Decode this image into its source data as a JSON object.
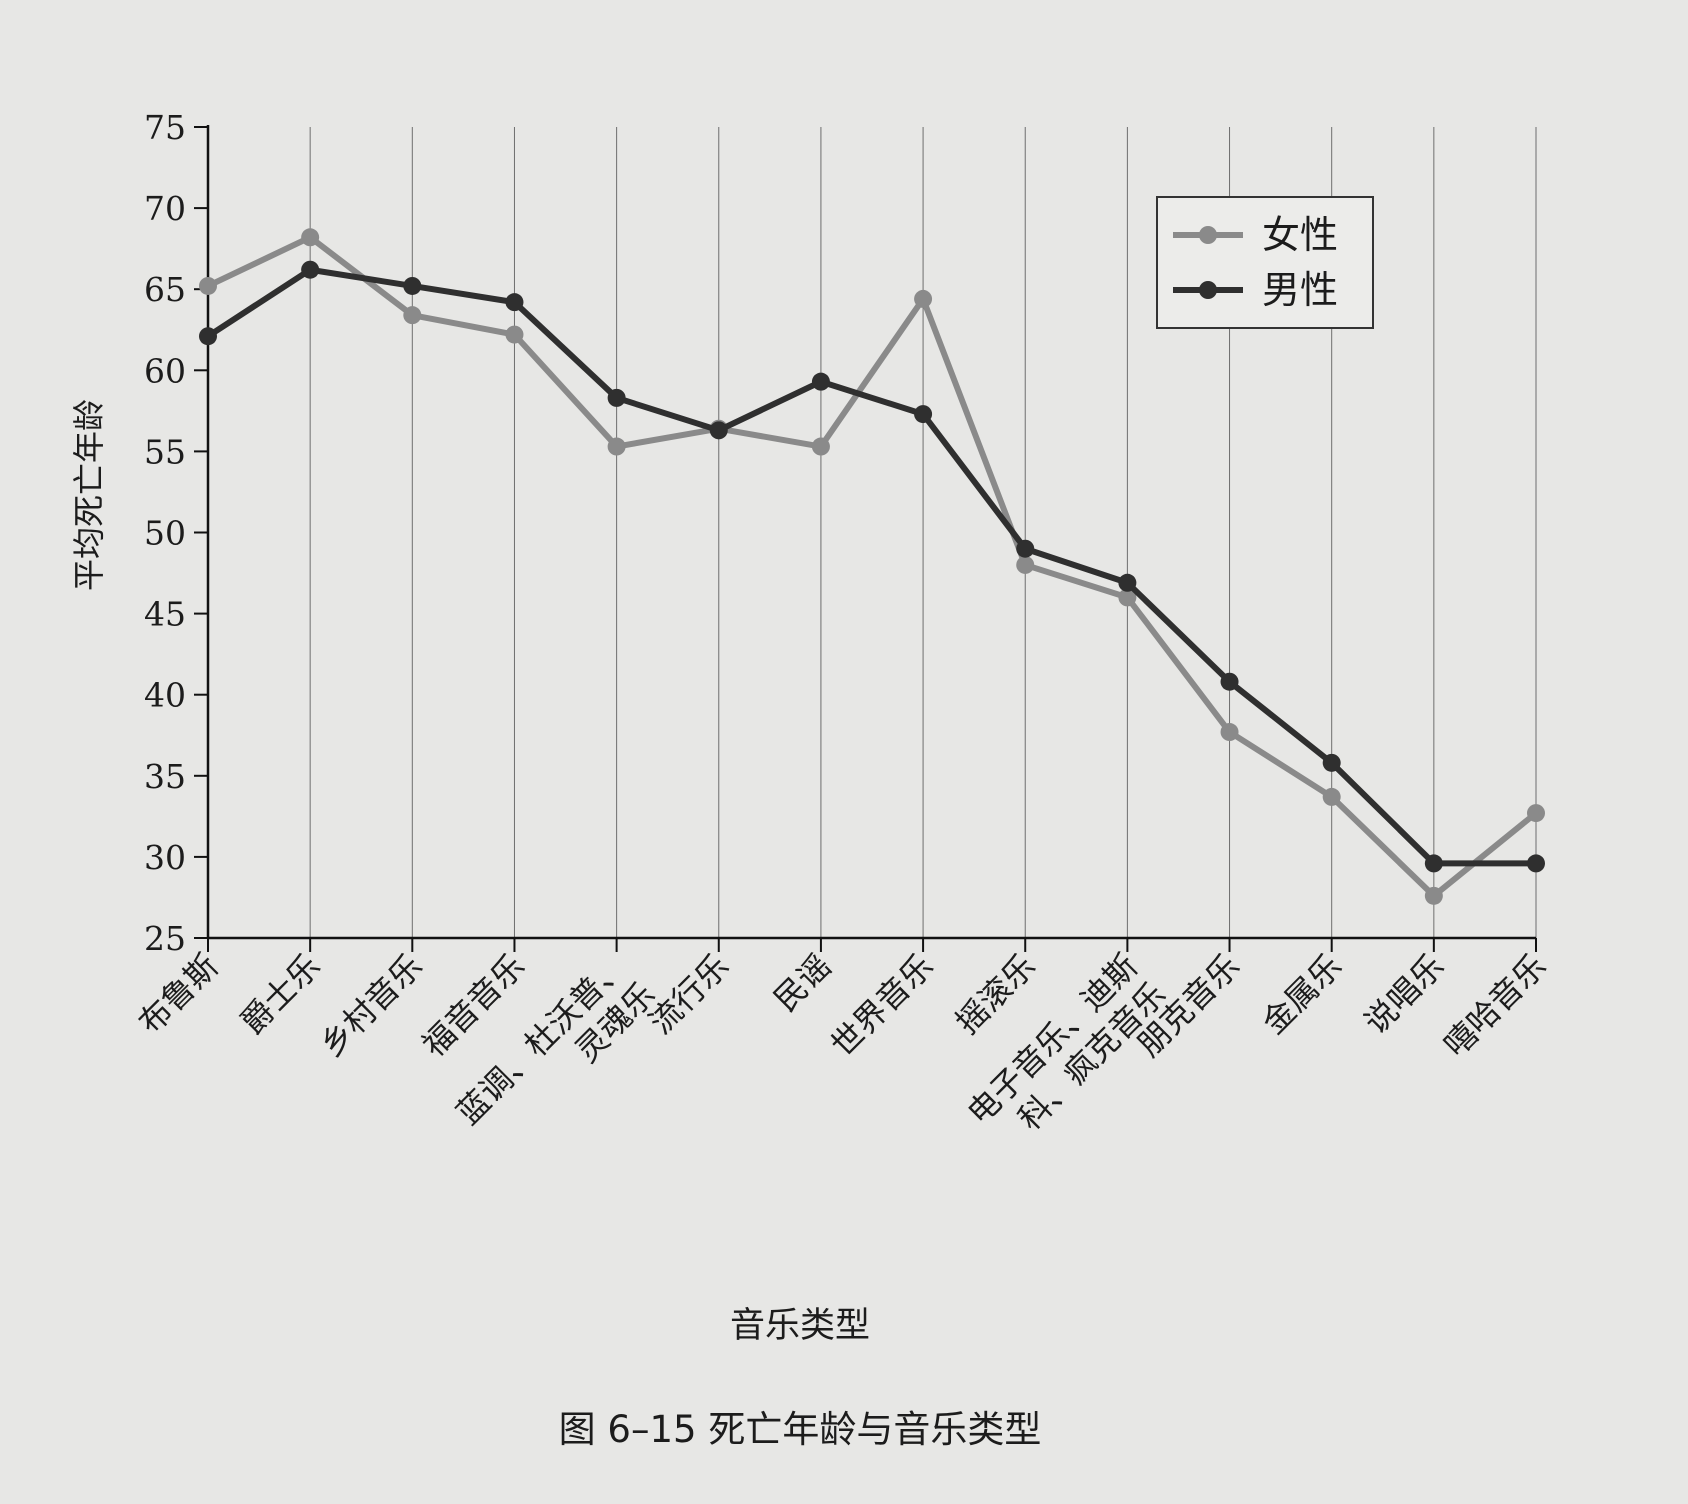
{
  "chart_data": {
    "type": "line",
    "title": "",
    "caption": "图 6–15   死亡年龄与音乐类型",
    "xlabel": "音乐类型",
    "ylabel": "平均死亡年龄",
    "ylim": [
      25,
      75
    ],
    "yticks": [
      25,
      30,
      35,
      40,
      45,
      50,
      55,
      60,
      65,
      70,
      75
    ],
    "grid": "vertical lines at categories",
    "legend_position": "top-right",
    "categories": [
      "布鲁斯",
      "爵士乐",
      "乡村音乐",
      "福音音乐",
      "蓝调、杜沃普、灵魂乐",
      "流行乐",
      "民谣",
      "世界音乐",
      "摇滚乐",
      "电子音乐、迪斯科、疯克音乐",
      "朋克音乐",
      "金属乐",
      "说唱乐",
      "嘻哈音乐"
    ],
    "category_lines": [
      [
        "布鲁斯"
      ],
      [
        "爵士乐"
      ],
      [
        "乡村音乐"
      ],
      [
        "福音音乐"
      ],
      [
        "蓝调、杜沃普、",
        "灵魂乐"
      ],
      [
        "流行乐"
      ],
      [
        "民谣"
      ],
      [
        "世界音乐"
      ],
      [
        "摇滚乐"
      ],
      [
        "电子音乐、迪斯",
        "科、疯克音乐"
      ],
      [
        "朋克音乐"
      ],
      [
        "金属乐"
      ],
      [
        "说唱乐"
      ],
      [
        "嘻哈音乐"
      ]
    ],
    "series": [
      {
        "name": "女性",
        "color": "#8a8a8a",
        "values": [
          65.2,
          68.2,
          63.4,
          62.2,
          55.3,
          56.4,
          55.3,
          64.4,
          48.0,
          46.0,
          37.7,
          33.7,
          27.6,
          32.7
        ]
      },
      {
        "name": "男性",
        "color": "#2f2f2f",
        "values": [
          62.1,
          66.2,
          65.2,
          64.2,
          58.3,
          56.3,
          59.3,
          57.3,
          49.0,
          46.9,
          40.8,
          35.8,
          29.6,
          29.6
        ]
      }
    ]
  }
}
